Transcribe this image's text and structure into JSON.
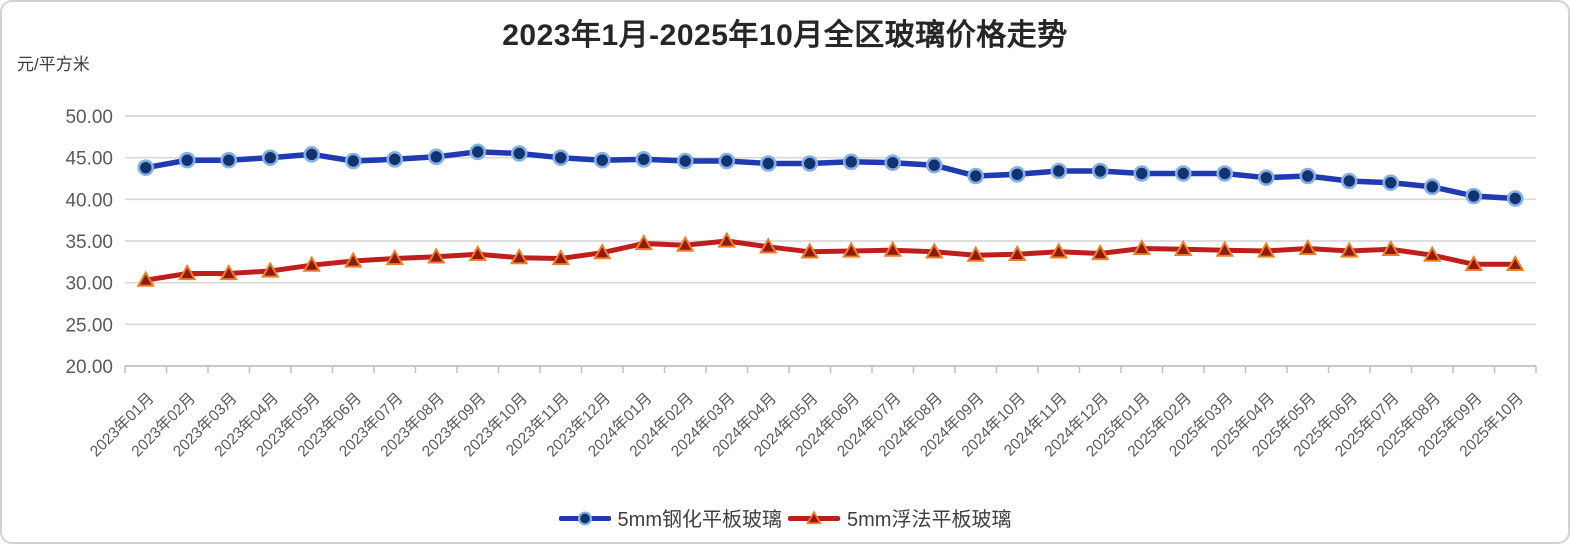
{
  "chart_data": {
    "type": "line",
    "title": "2023年1月-2025年10月全区玻璃价格走势",
    "ylabel": "元/平方米",
    "xlabel": "",
    "grid": true,
    "legend_position": "bottom",
    "ylim": [
      20,
      50
    ],
    "ytick_step": 5,
    "ytick_labels": [
      "50.00",
      "45.00",
      "40.00",
      "35.00",
      "30.00",
      "25.00",
      "20.00"
    ],
    "categories": [
      "2023年01月",
      "2023年02月",
      "2023年03月",
      "2023年04月",
      "2023年05月",
      "2023年06月",
      "2023年07月",
      "2023年08月",
      "2023年09月",
      "2023年10月",
      "2023年11月",
      "2023年12月",
      "2024年01月",
      "2024年02月",
      "2024年03月",
      "2024年04月",
      "2024年05月",
      "2024年06月",
      "2024年07月",
      "2024年08月",
      "2024年09月",
      "2024年10月",
      "2024年11月",
      "2024年12月",
      "2025年01月",
      "2025年02月",
      "2025年03月",
      "2025年04月",
      "2025年05月",
      "2025年06月",
      "2025年07月",
      "2025年08月",
      "2025年09月",
      "2025年10月"
    ],
    "series": [
      {
        "name": "5mm钢化平板玻璃",
        "marker": "circle",
        "line_color": "#2139B2",
        "marker_fill": "#123370",
        "marker_edge": "#82B1E2",
        "values": [
          43.8,
          44.7,
          44.7,
          45.0,
          45.4,
          44.6,
          44.8,
          45.1,
          45.7,
          45.5,
          45.0,
          44.7,
          44.8,
          44.6,
          44.6,
          44.3,
          44.3,
          44.5,
          44.4,
          44.1,
          42.8,
          43.0,
          43.4,
          43.4,
          43.1,
          43.1,
          43.1,
          42.6,
          42.8,
          42.2,
          42.0,
          41.5,
          40.4,
          40.1
        ]
      },
      {
        "name": "5mm浮法平板玻璃",
        "marker": "triangle",
        "line_color": "#C01E1C",
        "marker_fill": "#8E1B10",
        "marker_edge": "#EE7D27",
        "values": [
          30.3,
          31.1,
          31.1,
          31.4,
          32.1,
          32.6,
          32.9,
          33.1,
          33.4,
          33.0,
          32.9,
          33.6,
          34.7,
          34.5,
          35.0,
          34.3,
          33.7,
          33.8,
          33.9,
          33.7,
          33.3,
          33.4,
          33.7,
          33.5,
          34.1,
          34.0,
          33.9,
          33.8,
          34.1,
          33.8,
          34.0,
          33.3,
          32.2,
          32.2
        ]
      }
    ],
    "axis_colors": {
      "grid": "#D9D9D9",
      "axis_line": "#BFBFBF",
      "tick_label": "#595959"
    }
  }
}
